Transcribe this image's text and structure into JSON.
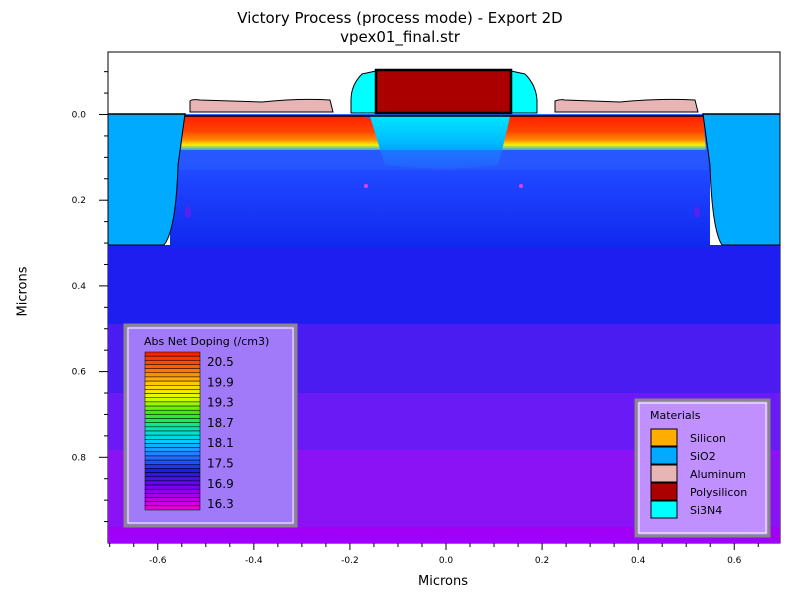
{
  "chart_data": {
    "type": "heatmap",
    "title": "Victory Process  (process mode) - Export 2D",
    "subtitle": "vpex01_final.str",
    "xlabel": "Microns",
    "ylabel": "Microns",
    "xlim": [
      -0.7,
      0.7
    ],
    "ylim": [
      0.0,
      0.98
    ],
    "x_ticks": [
      "-0.6",
      "-0.4",
      "-0.2",
      "0.0",
      "0.2",
      "0.4",
      "0.6"
    ],
    "y_ticks": [
      "0.0",
      "0.2",
      "0.4",
      "0.6",
      "0.8"
    ],
    "doping_legend": {
      "title": "Abs Net Doping (/cm3)",
      "labels": [
        "20.5",
        "19.9",
        "19.3",
        "18.7",
        "18.1",
        "17.5",
        "16.9",
        "16.3"
      ]
    },
    "materials_legend": {
      "title": "Materials",
      "items": [
        {
          "name": "Silicon",
          "color": "#ffae00"
        },
        {
          "name": "SiO2",
          "color": "#00aaff"
        },
        {
          "name": "Aluminum",
          "color": "#e8b5b5"
        },
        {
          "name": "Polysilicon",
          "color": "#aa0000"
        },
        {
          "name": "Si3N4",
          "color": "#00ffff"
        }
      ]
    }
  }
}
